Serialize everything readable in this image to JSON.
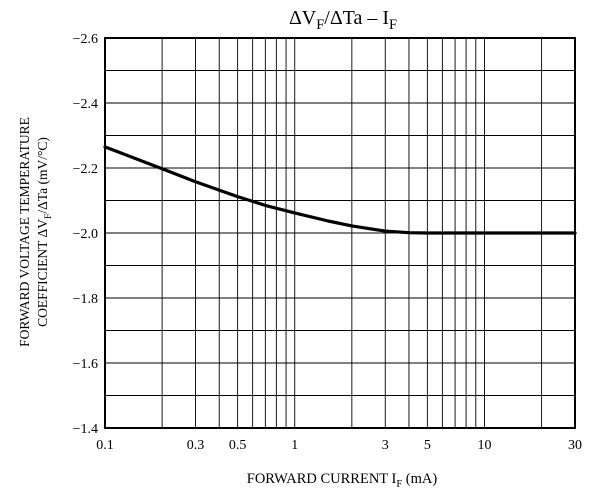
{
  "chart_data": {
    "type": "line",
    "title": {
      "prefix": "ΔV",
      "sub1": "F",
      "mid": "/ΔTa  –  I",
      "sub2": "F"
    },
    "xlabel": {
      "main": "FORWARD CURRENT  I",
      "sub": "F",
      "unit": "  (mA)"
    },
    "ylabel": {
      "line1": "FORWARD VOLTAGE TEMPERATURE",
      "line2a": "COEFFICIENT  ΔV",
      "line2sub": "F",
      "line2b": "/ΔTa  (mV/°C)"
    },
    "x_scale": "log",
    "xlim": [
      0.1,
      30
    ],
    "ylim": [
      -1.4,
      -2.6
    ],
    "y_direction": "values become more negative upward",
    "x_ticks": [
      {
        "value": 0.1,
        "label": "0.1"
      },
      {
        "value": 0.3,
        "label": "0.3"
      },
      {
        "value": 0.5,
        "label": "0.5"
      },
      {
        "value": 1,
        "label": "1"
      },
      {
        "value": 3,
        "label": "3"
      },
      {
        "value": 5,
        "label": "5"
      },
      {
        "value": 10,
        "label": "10"
      },
      {
        "value": 30,
        "label": "30"
      }
    ],
    "y_ticks": [
      {
        "value": -2.6,
        "label": "−2.6"
      },
      {
        "value": -2.4,
        "label": "−2.4"
      },
      {
        "value": -2.2,
        "label": "−2.2"
      },
      {
        "value": -2.0,
        "label": "−2.0"
      },
      {
        "value": -1.8,
        "label": "−1.8"
      },
      {
        "value": -1.6,
        "label": "−1.6"
      },
      {
        "value": -1.4,
        "label": "−1.4"
      }
    ],
    "y_minor_step": 0.1,
    "grid": true,
    "series": [
      {
        "x": [
          0.1,
          0.2,
          0.3,
          0.5,
          0.7,
          1,
          1.5,
          2,
          3,
          4,
          5,
          7,
          10,
          20,
          30
        ],
        "y": [
          -2.265,
          -2.198,
          -2.158,
          -2.112,
          -2.085,
          -2.062,
          -2.037,
          -2.022,
          -2.006,
          -2.001,
          -2.0,
          -2.0,
          -2.0,
          -2.0,
          -2.0
        ]
      }
    ]
  }
}
